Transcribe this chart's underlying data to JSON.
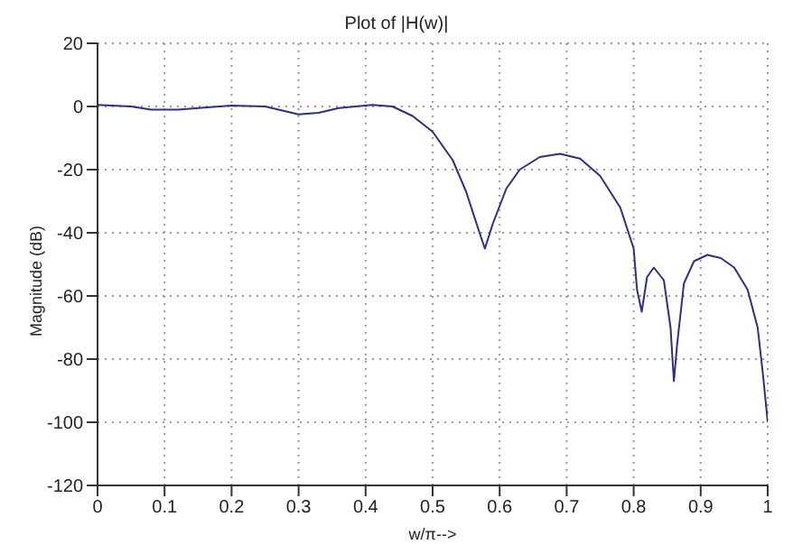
{
  "chart_data": {
    "type": "line",
    "title": "Plot of |H(w)|",
    "xlabel": "w/π-->",
    "ylabel": "Magnitude (dB)",
    "x": [
      0,
      0.05,
      0.08,
      0.12,
      0.2,
      0.25,
      0.3,
      0.33,
      0.36,
      0.41,
      0.44,
      0.47,
      0.5,
      0.53,
      0.55,
      0.57,
      0.578,
      0.59,
      0.61,
      0.63,
      0.66,
      0.69,
      0.72,
      0.75,
      0.78,
      0.8,
      0.805,
      0.812,
      0.82,
      0.83,
      0.845,
      0.855,
      0.86,
      0.865,
      0.875,
      0.89,
      0.91,
      0.93,
      0.95,
      0.97,
      0.985,
      0.993,
      1
    ],
    "series": [
      {
        "color": "#2a2f8c",
        "values": [
          0.5,
          0,
          -1,
          -1,
          0.3,
          0,
          -2.5,
          -2,
          -0.5,
          0.5,
          0,
          -3,
          -8,
          -17,
          -27,
          -40,
          -45,
          -37,
          -26,
          -20,
          -16,
          -15,
          -16.5,
          -22,
          -32,
          -45,
          -58,
          -65,
          -54,
          -51,
          -55,
          -70,
          -87,
          -75,
          -56,
          -49,
          -47,
          -48,
          -51,
          -58,
          -70,
          -85,
          -100
        ]
      }
    ],
    "xlim": [
      0,
      1
    ],
    "xticks": [
      0,
      0.1,
      0.2,
      0.3,
      0.4,
      0.5,
      0.6,
      0.7,
      0.8,
      0.9,
      1
    ],
    "ylim": [
      -120,
      20
    ],
    "yticks": [
      -120,
      -100,
      -80,
      -60,
      -40,
      -20,
      0,
      20
    ],
    "grid": true,
    "marker": "none",
    "line_style": "solid"
  }
}
